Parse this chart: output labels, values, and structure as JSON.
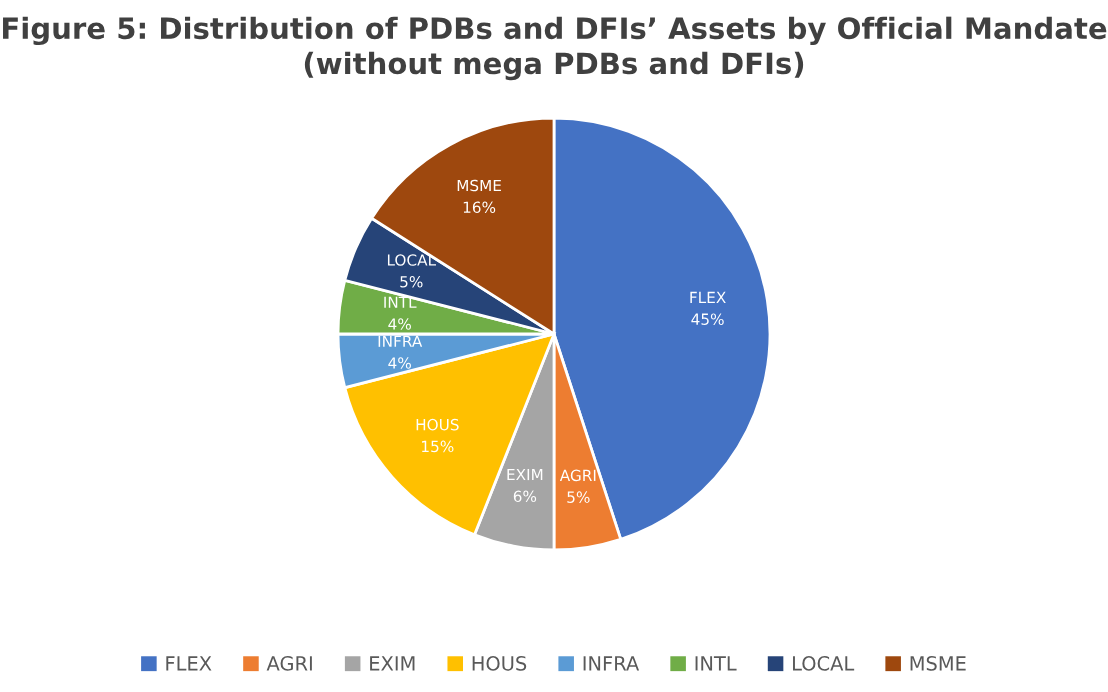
{
  "chart_data": {
    "type": "pie",
    "title": "Figure 5: Distribution of PDBs and DFIs’ Assets by Official Mandate\n(without mega PDBs and DFIs)",
    "categories": [
      "FLEX",
      "AGRI",
      "EXIM",
      "HOUS",
      "INFRA",
      "INTL",
      "LOCAL",
      "MSME"
    ],
    "values": [
      45,
      5,
      6,
      15,
      4,
      4,
      5,
      16
    ],
    "value_labels": [
      "45%",
      "5%",
      "6%",
      "15%",
      "4%",
      "4%",
      "5%",
      "16%"
    ],
    "colors": [
      "#4472c4",
      "#ed7d31",
      "#a5a5a5",
      "#ffc000",
      "#5b9bd5",
      "#70ad47",
      "#264478",
      "#9e480e"
    ],
    "legend": "bottom"
  }
}
